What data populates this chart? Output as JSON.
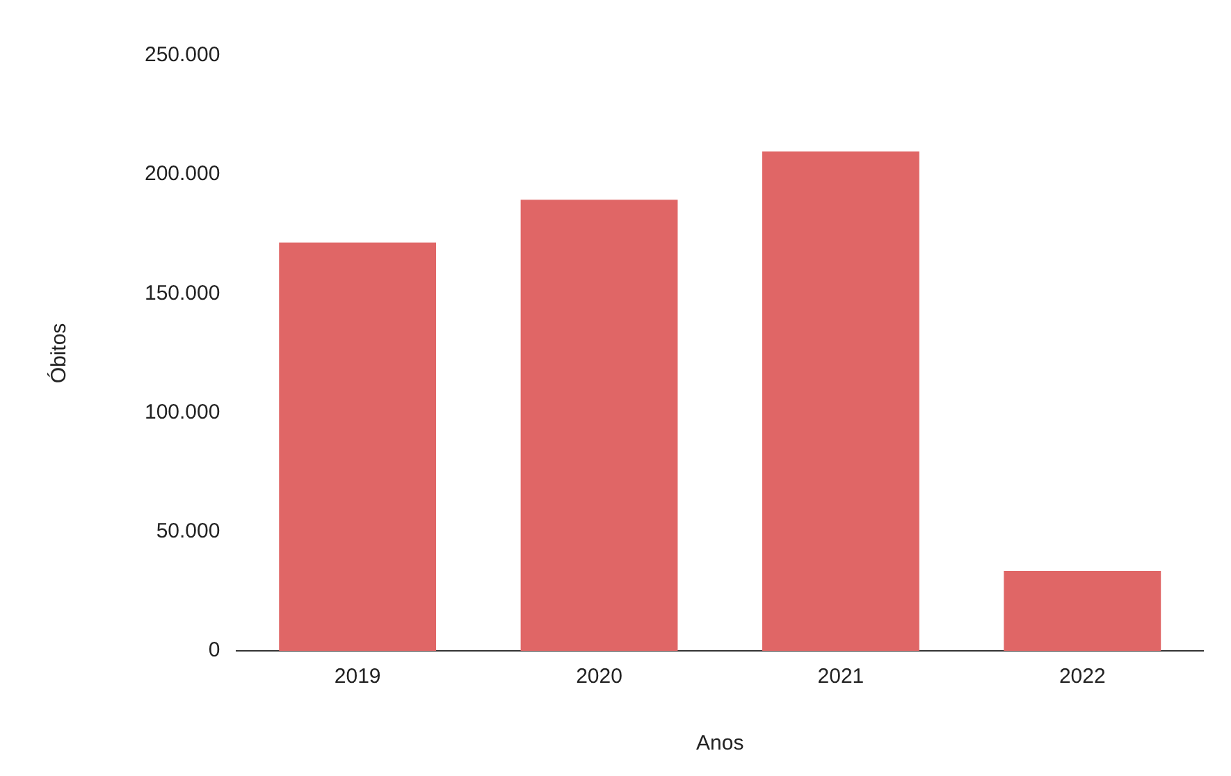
{
  "chart_data": {
    "type": "bar",
    "xlabel": "Anos",
    "ylabel": "Óbitos",
    "categories": [
      "2019",
      "2020",
      "2021",
      "2022"
    ],
    "values": [
      171500,
      189500,
      209800,
      33600
    ],
    "color": "#e06666",
    "ylim": [
      0,
      250000
    ],
    "yticks": [
      {
        "value": 0,
        "label": "0"
      },
      {
        "value": 50000,
        "label": "50.000"
      },
      {
        "value": 100000,
        "label": "100.000"
      },
      {
        "value": 150000,
        "label": "150.000"
      },
      {
        "value": 200000,
        "label": "200.000"
      },
      {
        "value": 250000,
        "label": "250.000"
      }
    ],
    "grid": false
  }
}
